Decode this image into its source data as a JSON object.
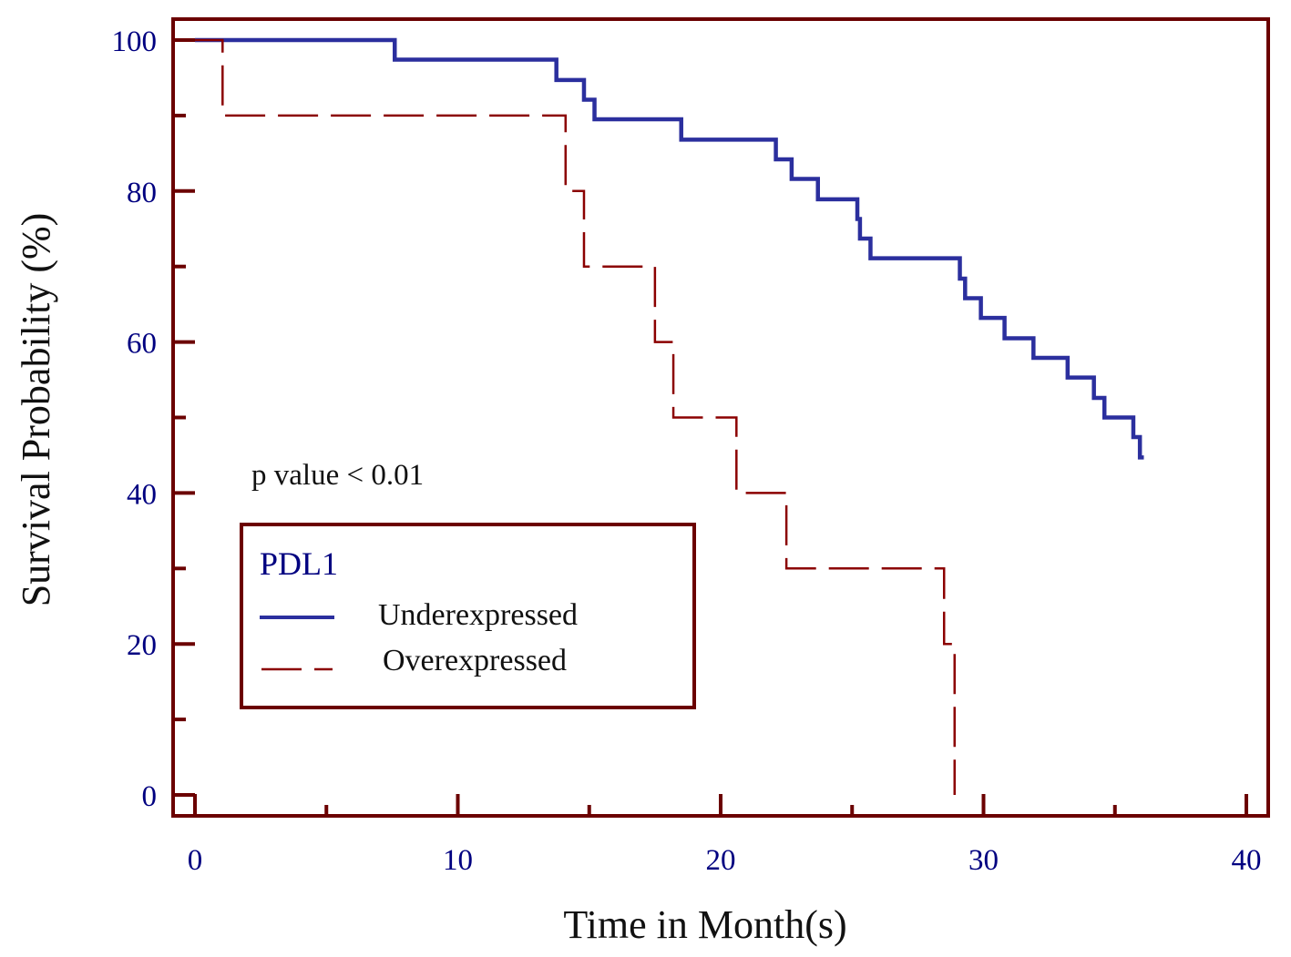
{
  "chart_data": {
    "type": "line",
    "subtype": "kaplan-meier-step",
    "title": "",
    "xlabel": "Time in Month(s)",
    "ylabel": "Survival Probability (%)",
    "xlim": [
      0,
      40
    ],
    "ylim": [
      0,
      100
    ],
    "xticks": [
      0,
      10,
      20,
      30,
      40
    ],
    "xtick_labels": [
      "0",
      "10",
      "20",
      "30",
      "40"
    ],
    "xminor_ticks": [
      5,
      15,
      25,
      35
    ],
    "yticks": [
      0,
      20,
      40,
      60,
      80,
      100
    ],
    "ytick_labels": [
      "0",
      "20",
      "40",
      "60",
      "80",
      "100"
    ],
    "yminor_ticks": [
      10,
      30,
      50,
      70,
      90
    ],
    "grid": false,
    "annotation": "p value < 0.01",
    "legend": {
      "title": "PDL1",
      "placement": "lower-left",
      "entries": [
        "Underexpressed",
        "Overexpressed"
      ]
    },
    "series": [
      {
        "name": "Underexpressed",
        "style": "solid",
        "color": "#2b2f9e",
        "x": [
          0,
          7.6,
          13.75,
          14.8,
          15.2,
          18.5,
          22.1,
          22.7,
          23.7,
          25.2,
          25.3,
          25.7,
          29.1,
          29.3,
          29.9,
          30.8,
          31.9,
          33.2,
          34.2,
          34.6,
          35.7,
          35.95
        ],
        "y": [
          100,
          97.4,
          94.7,
          92.1,
          89.5,
          86.8,
          84.2,
          81.6,
          78.9,
          76.3,
          73.7,
          71.1,
          68.4,
          65.8,
          63.2,
          60.5,
          57.9,
          55.3,
          52.6,
          50.0,
          47.4,
          44.7
        ],
        "end_x": 36.1
      },
      {
        "name": "Overexpressed",
        "style": "dashed",
        "color": "#8b0000",
        "x": [
          0,
          1.05,
          14.1,
          14.8,
          17.5,
          18.2,
          20.6,
          22.5,
          28.5,
          28.9
        ],
        "y": [
          100,
          90,
          80,
          70,
          60,
          50,
          40,
          30,
          20,
          0
        ],
        "end_x": 28.9
      }
    ]
  },
  "colors": {
    "frame": "#6b0000",
    "tick_label": "#000080",
    "legend_title": "#000080"
  }
}
